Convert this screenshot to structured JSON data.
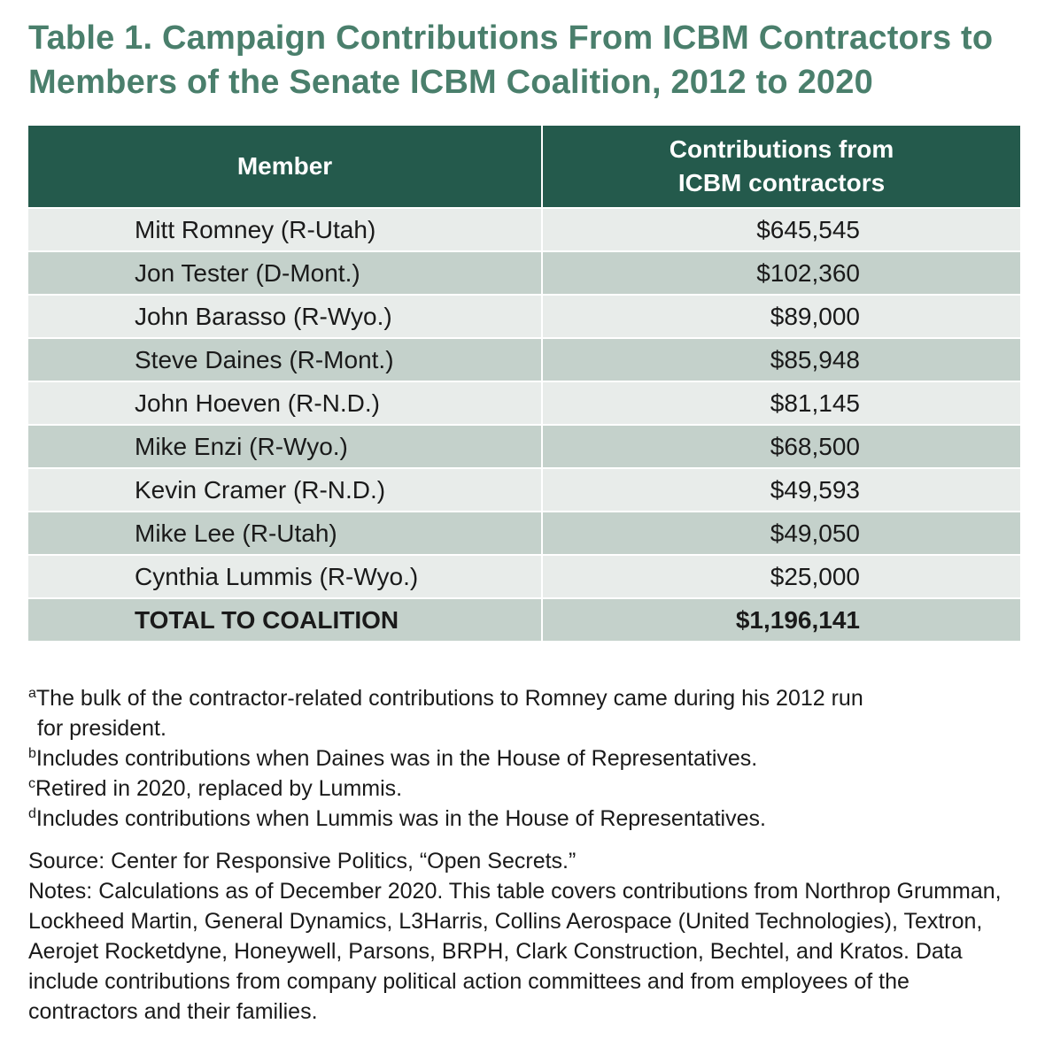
{
  "title": "Table 1. Campaign Contributions From ICBM Contractors to Members of the Senate ICBM Coalition, 2012 to 2020",
  "table": {
    "headers": {
      "member": "Member",
      "amount_line1": "Contributions from",
      "amount_line2": "ICBM contractors"
    },
    "rows": [
      {
        "member": "Mitt Romney (R-Utah)",
        "amount": "$645,545"
      },
      {
        "member": "Jon Tester (D-Mont.)",
        "amount": "$102,360"
      },
      {
        "member": "John Barasso (R-Wyo.)",
        "amount": "$89,000"
      },
      {
        "member": "Steve Daines (R-Mont.)",
        "amount": "$85,948"
      },
      {
        "member": "John Hoeven (R-N.D.)",
        "amount": "$81,145"
      },
      {
        "member": "Mike Enzi (R-Wyo.)",
        "amount": "$68,500"
      },
      {
        "member": "Kevin Cramer (R-N.D.)",
        "amount": "$49,593"
      },
      {
        "member": "Mike Lee (R-Utah)",
        "amount": "$49,050"
      },
      {
        "member": "Cynthia Lummis (R-Wyo.)",
        "amount": "$25,000"
      }
    ],
    "total": {
      "member": "TOTAL TO COALITION",
      "amount": "$1,196,141"
    }
  },
  "footnotes": {
    "a": {
      "marker": "a",
      "line1": "The bulk of the contractor-related contributions to Romney came during his 2012 run",
      "line2": "for president."
    },
    "b": {
      "marker": "b",
      "text": "Includes contributions when Daines was in the House of Representatives."
    },
    "c": {
      "marker": "c",
      "text": "Retired in 2020, replaced by Lummis."
    },
    "d": {
      "marker": "d",
      "text": "Includes contributions when Lummis was in the House of Representatives."
    }
  },
  "source": "Source: Center for Responsive Politics, “Open Secrets.”",
  "notes": "Notes: Calculations as of December 2020. This table covers contributions from Northrop Grumman, Lockheed Martin, General Dynamics, L3Harris, Collins Aerospace (United Technologies), Textron, Aerojet Rocketdyne, Honeywell, Parsons, BRPH, Clark Construction, Bechtel, and Kratos. Data include contributions from company political action committees and from employees of the contractors and their families.",
  "colors": {
    "title": "#4a7f6c",
    "header_bg": "#245a4c",
    "row_light": "#e8ecea",
    "row_dark": "#c4d1cb"
  }
}
